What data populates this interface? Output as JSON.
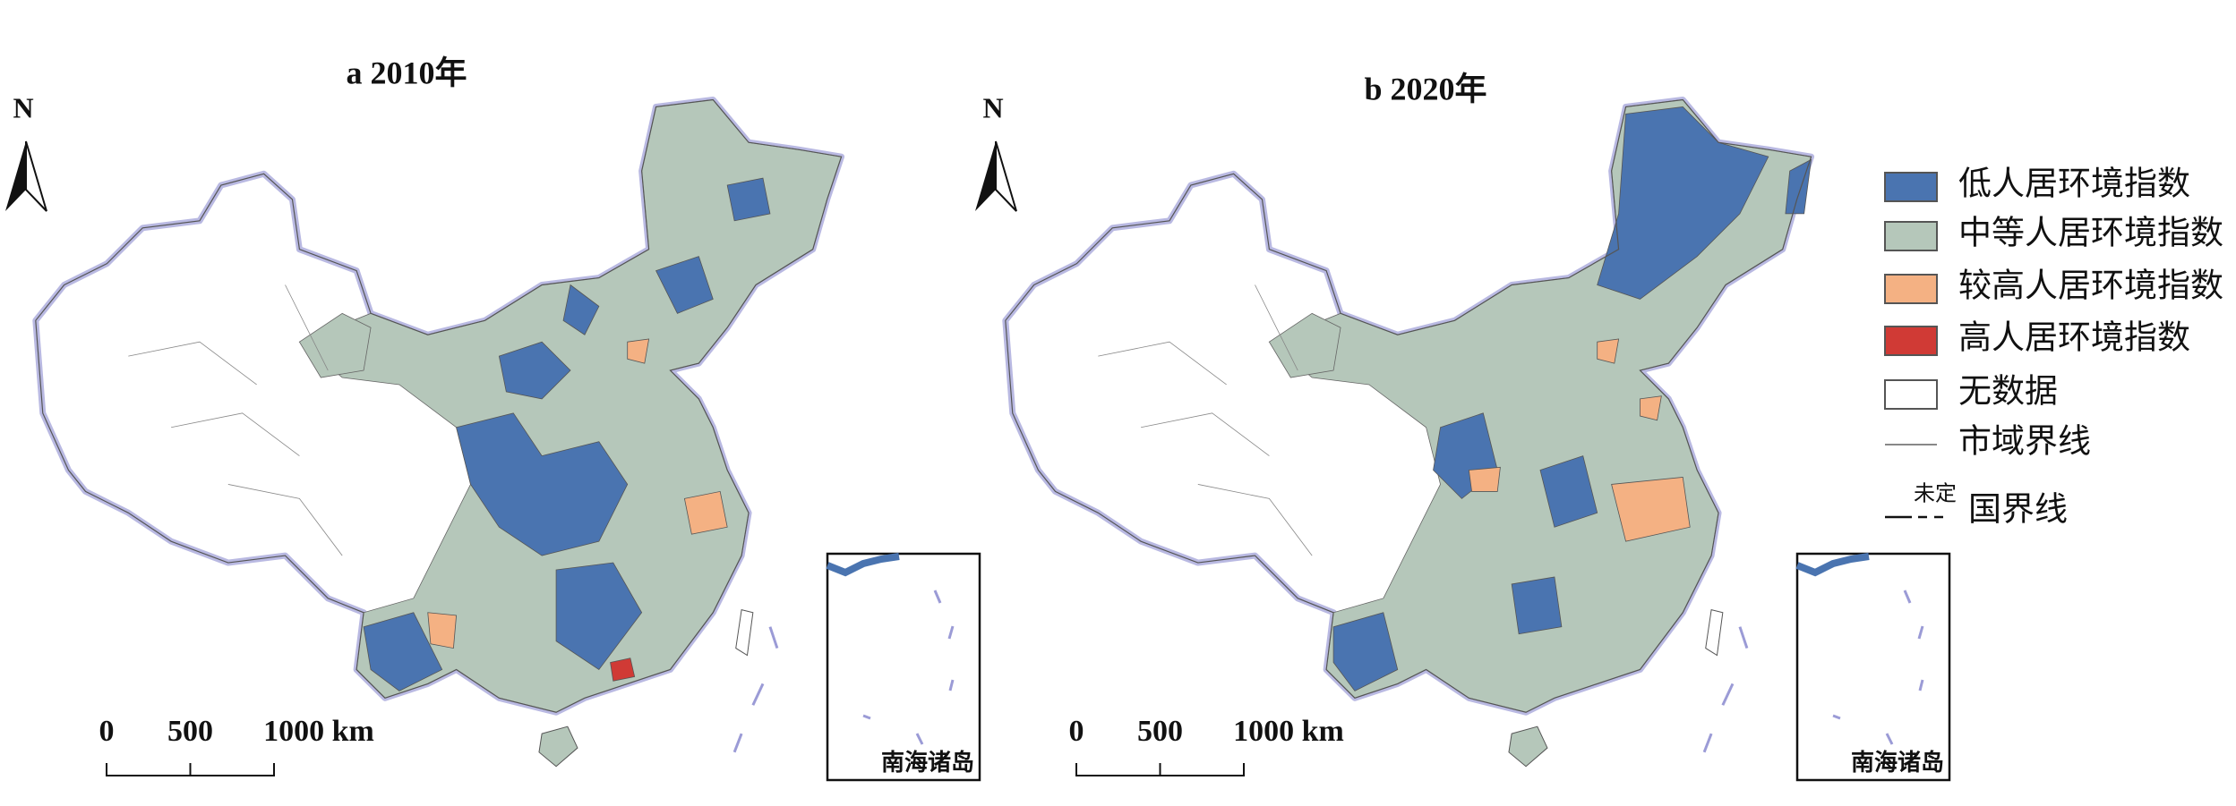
{
  "panels": [
    {
      "title": "a 2010年",
      "north": "N",
      "scale_labels": [
        "0",
        "500",
        "1000 km"
      ],
      "inset_label": "南海诸岛"
    },
    {
      "title": "b 2020年",
      "north": "N",
      "scale_labels": [
        "0",
        "500",
        "1000 km"
      ],
      "inset_label": "南海诸岛"
    }
  ],
  "legend": {
    "items": [
      {
        "label": "低人居环境指数",
        "color": "#4a74b0"
      },
      {
        "label": "中等人居环境指数",
        "color": "#b5c7ba"
      },
      {
        "label": "较高人居环境指数",
        "color": "#f4b183"
      },
      {
        "label": "高人居环境指数",
        "color": "#d03a35"
      },
      {
        "label": "无数据",
        "color": "#ffffff"
      },
      {
        "label": "市域界线",
        "color": "#888888"
      }
    ],
    "undetermined": "未定",
    "border": "国界线"
  }
}
